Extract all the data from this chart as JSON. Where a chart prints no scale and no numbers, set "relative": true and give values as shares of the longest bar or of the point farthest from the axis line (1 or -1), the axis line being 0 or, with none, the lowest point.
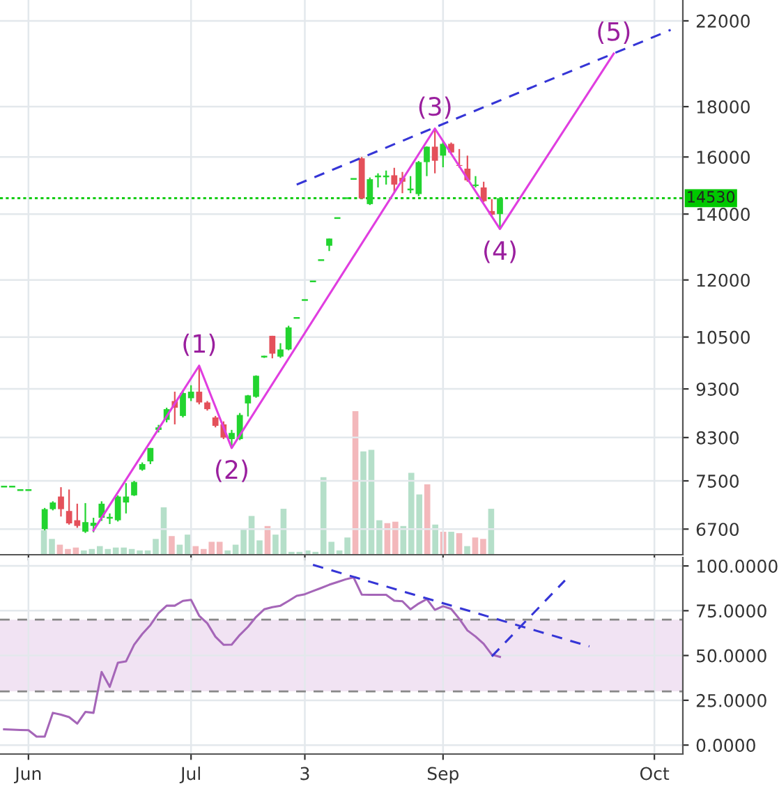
{
  "chart_data": [
    {
      "type": "candlestick",
      "categories": [
        null,
        null,
        null,
        null,
        null,
        null,
        null,
        null,
        null,
        null,
        null,
        null,
        null,
        null,
        null,
        null,
        null,
        null,
        null,
        null,
        null,
        null,
        null,
        null,
        null,
        null,
        null,
        null,
        null,
        null,
        null,
        null,
        null,
        null,
        null,
        null,
        null,
        null,
        null,
        null,
        null,
        null,
        null,
        null,
        null,
        null,
        null,
        null,
        null,
        null,
        null,
        null,
        null,
        null,
        null,
        null,
        null,
        null,
        null,
        null,
        null,
        null,
        null,
        null,
        null,
        null,
        null,
        null,
        null,
        null,
        null,
        null,
        null,
        null,
        null,
        null,
        null,
        null,
        null,
        null,
        null,
        null,
        null,
        null
      ],
      "ohlc": [
        [
          7400,
          7400,
          7400,
          7400
        ],
        [
          7400,
          7400,
          7400,
          7400
        ],
        [
          7340,
          7340,
          7340,
          7340
        ],
        [
          7340,
          7340,
          7340,
          7340
        ],
        null,
        [
          6700,
          7040,
          6680,
          7020
        ],
        [
          7020,
          7150,
          7000,
          7130
        ],
        [
          7230,
          7390,
          6900,
          7020
        ],
        [
          6990,
          7350,
          6770,
          6790
        ],
        [
          6840,
          7110,
          6720,
          6750
        ],
        [
          6660,
          7120,
          6640,
          6810
        ],
        [
          6750,
          6880,
          6650,
          6800
        ],
        [
          6880,
          7150,
          6830,
          7110
        ],
        [
          6880,
          6950,
          6780,
          6880
        ],
        [
          6840,
          7250,
          6820,
          7230
        ],
        [
          7130,
          7460,
          6950,
          7230
        ],
        [
          7250,
          7500,
          7240,
          7480
        ],
        [
          7700,
          7830,
          7680,
          7800
        ],
        [
          7850,
          8100,
          7800,
          8100
        ],
        [
          8450,
          8550,
          8400,
          8500
        ],
        [
          8650,
          8900,
          8600,
          8870
        ],
        [
          9040,
          9240,
          8560,
          8900
        ],
        [
          8730,
          9270,
          8700,
          9210
        ],
        [
          9100,
          9380,
          9040,
          9240
        ],
        [
          9240,
          9820,
          8970,
          9010
        ],
        [
          9010,
          9040,
          8840,
          8870
        ],
        [
          8700,
          8730,
          8500,
          8530
        ],
        [
          8560,
          8620,
          8270,
          8300
        ],
        [
          8270,
          8450,
          8100,
          8390
        ],
        [
          8270,
          8790,
          8250,
          8750
        ],
        [
          8990,
          9170,
          8720,
          9160
        ],
        [
          9130,
          9600,
          9110,
          9590
        ],
        [
          10030,
          10050,
          10000,
          10030
        ],
        [
          10530,
          10530,
          9990,
          10100
        ],
        [
          10030,
          10350,
          10000,
          10200
        ],
        [
          10200,
          10780,
          10180,
          10740
        ],
        [
          10980,
          10980,
          10980,
          10980
        ],
        [
          11450,
          11450,
          11450,
          11450
        ],
        [
          11960,
          11960,
          11960,
          11960
        ],
        [
          12570,
          12570,
          12570,
          12570
        ],
        [
          13000,
          13220,
          12840,
          13220
        ],
        [
          13870,
          13870,
          13870,
          13870
        ],
        [
          14530,
          14530,
          14530,
          14530
        ],
        [
          15200,
          15200,
          15200,
          15200
        ],
        [
          15950,
          16000,
          14500,
          14520
        ],
        [
          14330,
          15250,
          14300,
          15190
        ],
        [
          15290,
          15400,
          14900,
          15290
        ],
        [
          15290,
          15500,
          15000,
          15290
        ],
        [
          15330,
          15600,
          14700,
          15000
        ],
        [
          15240,
          15450,
          14700,
          15100
        ],
        [
          14800,
          15300,
          14700,
          14860
        ],
        [
          14670,
          15850,
          14600,
          15810
        ],
        [
          15810,
          16400,
          15300,
          16390
        ],
        [
          16390,
          17100,
          15400,
          15860
        ],
        [
          16050,
          16600,
          15620,
          16500
        ],
        [
          16500,
          16550,
          16100,
          16170
        ],
        [
          15700,
          16300,
          15600,
          15670
        ],
        [
          15570,
          16050,
          15100,
          15150
        ],
        [
          14950,
          15300,
          14900,
          15000
        ],
        [
          14900,
          15100,
          14400,
          14430
        ],
        [
          14100,
          14500,
          13900,
          13980
        ],
        [
          14000,
          14550,
          13520,
          14530
        ],
        null,
        null,
        null,
        null,
        null,
        null,
        null,
        null,
        null,
        null,
        null,
        null,
        null,
        null,
        null,
        null,
        null,
        null,
        null,
        null,
        null,
        null
      ],
      "log": true,
      "ylim": [
        6310,
        23100
      ],
      "yticks": [
        6700,
        7500,
        8300,
        9300,
        10500,
        12000,
        14000,
        16000,
        18000,
        22000
      ],
      "tick_labels": "y",
      "grid": true,
      "series": [
        {
          "type": "line",
          "color": "#e03ee0",
          "values": [
            null,
            null,
            null,
            null,
            null,
            null,
            null,
            null,
            null,
            null,
            null,
            6680,
            null,
            null,
            null,
            null,
            null,
            null,
            null,
            null,
            null,
            null,
            null,
            null,
            9820,
            null,
            null,
            null,
            8100,
            null,
            null,
            null,
            null,
            null,
            null,
            null,
            null,
            null,
            null,
            null,
            null,
            null,
            null,
            null,
            null,
            null,
            null,
            null,
            null,
            null,
            null,
            null,
            null,
            17100,
            null,
            null,
            null,
            null,
            null,
            null,
            null,
            13520,
            null,
            null,
            null,
            null,
            null,
            null,
            null,
            null,
            null,
            null,
            null,
            null,
            null,
            20380,
            null,
            null,
            null,
            null,
            null,
            null,
            null,
            null
          ]
        },
        {
          "type": "line",
          "line_style": "dashed",
          "color": "#3535d6",
          "values": [
            null,
            null,
            null,
            null,
            null,
            null,
            null,
            null,
            null,
            null,
            null,
            null,
            null,
            null,
            null,
            null,
            null,
            null,
            null,
            null,
            null,
            null,
            null,
            null,
            null,
            null,
            null,
            null,
            null,
            null,
            null,
            null,
            null,
            null,
            null,
            null,
            15000,
            null,
            null,
            null,
            null,
            null,
            null,
            null,
            null,
            null,
            null,
            null,
            null,
            null,
            null,
            null,
            null,
            null,
            null,
            null,
            null,
            null,
            null,
            null,
            null,
            null,
            null,
            null,
            null,
            null,
            null,
            null,
            null,
            null,
            null,
            null,
            null,
            null,
            null,
            null,
            null,
            null,
            null,
            null,
            null,
            null,
            21540,
            null
          ]
        }
      ],
      "ref_lines": [
        {
          "axis": "y",
          "value": 14530,
          "label": "14530",
          "color": "#00c800",
          "line_style": "dotted"
        }
      ],
      "annotations": [
        "(1)",
        "(2)",
        "(3)",
        "(4)",
        "(5)"
      ]
    },
    {
      "type": "bar",
      "relative": true,
      "tick_labels": false,
      "categories": [
        null,
        null,
        null,
        null,
        null,
        null,
        null,
        null,
        null,
        null,
        null,
        null,
        null,
        null,
        null,
        null,
        null,
        null,
        null,
        null,
        null,
        null,
        null,
        null,
        null,
        null,
        null,
        null,
        null,
        null,
        null,
        null,
        null,
        null,
        null,
        null,
        null,
        null,
        null,
        null,
        null,
        null,
        null,
        null,
        null,
        null,
        null,
        null,
        null,
        null,
        null,
        null,
        null,
        null,
        null,
        null,
        null
      ],
      "values": [
        0.17,
        0.11,
        0.07,
        0.04,
        0.05,
        0.03,
        0.04,
        0.06,
        0.04,
        0.05,
        0.05,
        0.04,
        0.03,
        0.03,
        0.11,
        0.33,
        0.13,
        0.07,
        0.14,
        0.06,
        0.04,
        0.09,
        0.09,
        0.03,
        0.07,
        0.18,
        0.27,
        0.1,
        0.2,
        0.14,
        0.32,
        0.02,
        0.02,
        0.03,
        0.02,
        0.54,
        0.09,
        0.03,
        0.12,
        1,
        0.72,
        0.73,
        0.24,
        0.22,
        0.23,
        0.2,
        0.57,
        0.42,
        0.49,
        0.21,
        0.16,
        0.16,
        0.15,
        0.06,
        0.12,
        0.11,
        0.32
      ],
      "colors": [
        "#b5dfc9",
        "#b5dfc9",
        "#f3b8bb",
        "#f3b8bb",
        "#f3b8bb",
        "#b5dfc9",
        "#b5dfc9",
        "#b5dfc9",
        "#b5dfc9",
        "#b5dfc9",
        "#b5dfc9",
        "#b5dfc9",
        "#b5dfc9",
        "#b5dfc9",
        "#b5dfc9",
        "#b5dfc9",
        "#f3b8bb",
        "#b5dfc9",
        "#b5dfc9",
        "#f3b8bb",
        "#f3b8bb",
        "#f3b8bb",
        "#f3b8bb",
        "#b5dfc9",
        "#b5dfc9",
        "#b5dfc9",
        "#b5dfc9",
        "#b5dfc9",
        "#f3b8bb",
        "#b5dfc9",
        "#b5dfc9",
        "#b5dfc9",
        "#b5dfc9",
        "#b5dfc9",
        "#b5dfc9",
        "#b5dfc9",
        "#b5dfc9",
        "#b5dfc9",
        "#b5dfc9",
        "#f3b8bb",
        "#b5dfc9",
        "#b5dfc9",
        "#b5dfc9",
        "#f3b8bb",
        "#f3b8bb",
        "#b5dfc9",
        "#b5dfc9",
        "#b5dfc9",
        "#f3b8bb",
        "#b5dfc9",
        "#f3b8bb",
        "#b5dfc9",
        "#f3b8bb",
        "#b5dfc9",
        "#f3b8bb",
        "#f3b8bb",
        "#b5dfc9"
      ]
    },
    {
      "type": "line",
      "ylim": [
        -5,
        104.7
      ],
      "categories": [
        null,
        null,
        null,
        "Jun",
        null,
        null,
        null,
        null,
        null,
        null,
        null,
        null,
        null,
        null,
        null,
        null,
        null,
        null,
        null,
        null,
        null,
        null,
        null,
        "Jul",
        null,
        null,
        null,
        null,
        null,
        null,
        null,
        null,
        null,
        null,
        null,
        null,
        null,
        "3",
        null,
        null,
        null,
        null,
        null,
        null,
        null,
        null,
        null,
        null,
        null,
        null,
        null,
        null,
        null,
        null,
        "Sep",
        null,
        null,
        null,
        null,
        null,
        null,
        null,
        null,
        null,
        null,
        null,
        null,
        null,
        null,
        null,
        null,
        null,
        null,
        null,
        null,
        null,
        null,
        null,
        null,
        null,
        "Oct",
        null,
        null,
        null
      ],
      "yticks": [
        {
          "value": 0,
          "label": "0.0000"
        },
        {
          "value": 25,
          "label": "25.0000"
        },
        {
          "value": 50,
          "label": "50.0000"
        },
        {
          "value": 75,
          "label": "75.0000"
        },
        {
          "value": 100,
          "label": "100.0000"
        }
      ],
      "grid": true,
      "series": [
        {
          "color": "#a566b8",
          "values": [
            8.8,
            8.6,
            8.4,
            8.3,
            4.7,
            4.7,
            18,
            17,
            15.6,
            12,
            18.5,
            18,
            40.8,
            32.5,
            46,
            46.7,
            56,
            62,
            67,
            73.6,
            77.8,
            77.8,
            80.5,
            81.1,
            72.2,
            68,
            60.5,
            56,
            56.1,
            61.5,
            66,
            71.5,
            75.8,
            77,
            77.8,
            80.5,
            83.3,
            84.2,
            86,
            87.7,
            89.5,
            91,
            92.5,
            93.6,
            84,
            83.9,
            83.9,
            83.9,
            80.6,
            80.3,
            75.8,
            79,
            81.5,
            75.5,
            77.5,
            76,
            70.5,
            64,
            60.6,
            56.5,
            50.5,
            49.2,
            null,
            null,
            null,
            null,
            null,
            null,
            null,
            null,
            null,
            null,
            null,
            null,
            null,
            null,
            null,
            null,
            null,
            null,
            null,
            null,
            null,
            null
          ]
        },
        {
          "line_style": "dashed",
          "color": "#3535d6",
          "values": [
            null,
            null,
            null,
            null,
            null,
            null,
            null,
            null,
            null,
            null,
            null,
            null,
            null,
            null,
            null,
            null,
            null,
            null,
            null,
            null,
            null,
            null,
            null,
            null,
            null,
            null,
            null,
            null,
            null,
            null,
            null,
            null,
            null,
            null,
            null,
            null,
            null,
            null,
            100.6,
            null,
            null,
            null,
            null,
            null,
            null,
            null,
            null,
            null,
            null,
            null,
            null,
            null,
            null,
            null,
            null,
            null,
            null,
            null,
            null,
            null,
            null,
            null,
            null,
            null,
            null,
            null,
            null,
            null,
            null,
            null,
            null,
            null,
            55.1,
            null,
            null,
            null,
            null,
            null,
            null,
            null,
            null,
            null,
            null,
            null
          ]
        },
        {
          "line_style": "dashed",
          "color": "#3535d6",
          "values": [
            null,
            null,
            null,
            null,
            null,
            null,
            null,
            null,
            null,
            null,
            null,
            null,
            null,
            null,
            null,
            null,
            null,
            null,
            null,
            null,
            null,
            null,
            null,
            null,
            null,
            null,
            null,
            null,
            null,
            null,
            null,
            null,
            null,
            null,
            null,
            null,
            null,
            null,
            null,
            null,
            null,
            null,
            null,
            null,
            null,
            null,
            null,
            null,
            null,
            null,
            null,
            null,
            null,
            null,
            null,
            null,
            null,
            null,
            null,
            null,
            49.5,
            null,
            null,
            null,
            null,
            null,
            null,
            null,
            null,
            91.9,
            null,
            null,
            null,
            null,
            null,
            null,
            null,
            null,
            null,
            null,
            null,
            null,
            null,
            null
          ]
        }
      ],
      "ref_lines": [
        {
          "axis": "y",
          "value": 70,
          "color": "#888888",
          "line_style": "dashed"
        },
        {
          "axis": "y",
          "value": 30,
          "color": "#888888",
          "line_style": "dashed"
        }
      ],
      "bands": [
        {
          "axis": "y",
          "from": 30,
          "to": 70,
          "color": "#f1e3f3"
        }
      ]
    }
  ]
}
